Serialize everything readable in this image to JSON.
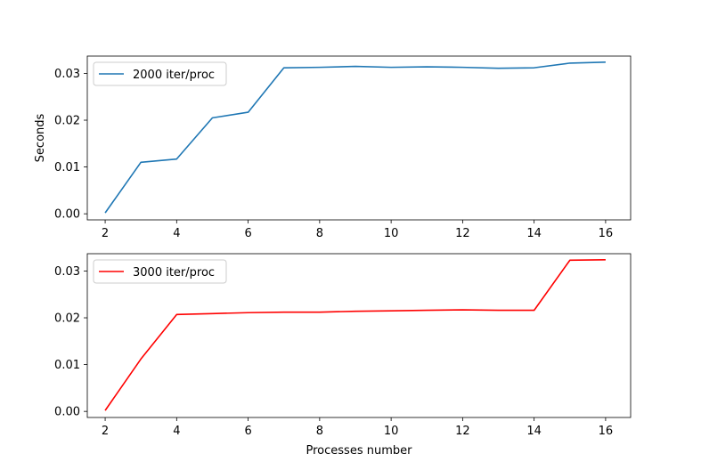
{
  "chart_data": [
    {
      "type": "line",
      "title": "",
      "xlabel": "",
      "ylabel": "Seconds",
      "xlim": [
        1.5,
        16.7
      ],
      "ylim": [
        -0.0013,
        0.0337
      ],
      "xticks": [
        2,
        4,
        6,
        8,
        10,
        12,
        14,
        16
      ],
      "xtick_labels": [
        "2",
        "4",
        "6",
        "8",
        "10",
        "12",
        "14",
        "16"
      ],
      "yticks": [
        0,
        0.01,
        0.02,
        0.03
      ],
      "ytick_labels": [
        "0.00",
        "0.01",
        "0.02",
        "0.03"
      ],
      "grid": false,
      "legend_position": "upper-left",
      "x": [
        2,
        3,
        4,
        5,
        6,
        7,
        8,
        9,
        10,
        11,
        12,
        13,
        14,
        15,
        16
      ],
      "series": [
        {
          "name": "2000 iter/proc",
          "color": "#1f77b4",
          "values": [
            0.0002,
            0.011,
            0.0117,
            0.0205,
            0.0217,
            0.0312,
            0.0313,
            0.0315,
            0.0313,
            0.0314,
            0.0313,
            0.0311,
            0.0312,
            0.0322,
            0.0324
          ]
        }
      ]
    },
    {
      "type": "line",
      "title": "",
      "xlabel": "Processes number",
      "ylabel": "",
      "xlim": [
        1.5,
        16.7
      ],
      "ylim": [
        -0.0013,
        0.0337
      ],
      "xticks": [
        2,
        4,
        6,
        8,
        10,
        12,
        14,
        16
      ],
      "xtick_labels": [
        "2",
        "4",
        "6",
        "8",
        "10",
        "12",
        "14",
        "16"
      ],
      "yticks": [
        0,
        0.01,
        0.02,
        0.03
      ],
      "ytick_labels": [
        "0.00",
        "0.01",
        "0.02",
        "0.03"
      ],
      "grid": false,
      "legend_position": "upper-left",
      "x": [
        2,
        3,
        4,
        5,
        6,
        7,
        8,
        9,
        10,
        11,
        12,
        13,
        14,
        15,
        16
      ],
      "series": [
        {
          "name": "3000 iter/proc",
          "color": "#ff0000",
          "values": [
            0.0002,
            0.0112,
            0.0207,
            0.0209,
            0.0211,
            0.0212,
            0.0212,
            0.0214,
            0.0215,
            0.0216,
            0.0217,
            0.0216,
            0.0216,
            0.0323,
            0.0324
          ]
        }
      ]
    }
  ]
}
